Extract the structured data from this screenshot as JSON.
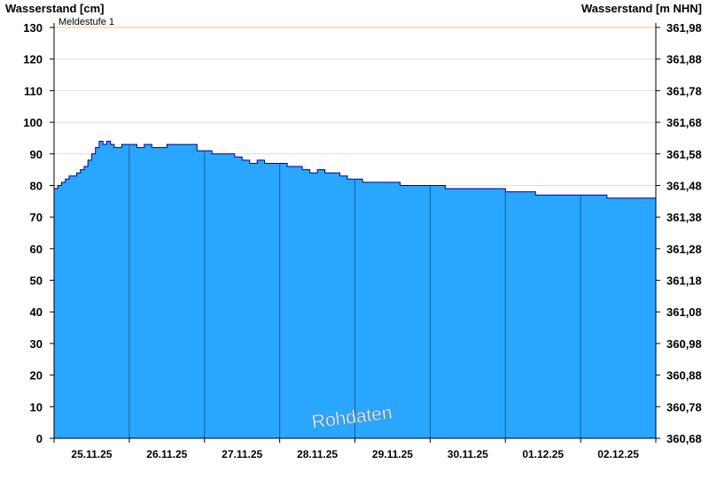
{
  "chart_data": {
    "type": "area",
    "y_left_label": "Wasserstand [cm]",
    "y_right_label": "Wasserstand [m NHN]",
    "ylim": [
      0,
      130
    ],
    "y_ticks": [
      0,
      10,
      20,
      30,
      40,
      50,
      60,
      70,
      80,
      90,
      100,
      110,
      120,
      130
    ],
    "y_right_ticks": [
      "360,68",
      "360,78",
      "360,88",
      "360,98",
      "361,08",
      "361,18",
      "361,28",
      "361,38",
      "361,48",
      "361,58",
      "361,68",
      "361,78",
      "361,88",
      "361,98"
    ],
    "x_range_days": [
      0,
      8
    ],
    "x_tick_labels": [
      "25.11.25",
      "26.11.25",
      "27.11.25",
      "28.11.25",
      "29.11.25",
      "30.11.25",
      "01.12.25",
      "02.12.25"
    ],
    "threshold": {
      "label": "Meldestufe 1",
      "value": 130,
      "color": "#f5c26b"
    },
    "watermark": "Rohdaten",
    "fill_color": "#29a6ff",
    "line_color": "#00008b",
    "grid": true,
    "x": [
      0,
      0.05,
      0.1,
      0.15,
      0.2,
      0.25,
      0.3,
      0.35,
      0.4,
      0.45,
      0.5,
      0.55,
      0.6,
      0.65,
      0.7,
      0.75,
      0.8,
      0.85,
      0.9,
      0.95,
      1.0,
      1.1,
      1.2,
      1.3,
      1.4,
      1.5,
      1.6,
      1.7,
      1.8,
      1.9,
      2.0,
      2.1,
      2.2,
      2.3,
      2.4,
      2.5,
      2.6,
      2.7,
      2.8,
      2.9,
      3.0,
      3.1,
      3.2,
      3.3,
      3.4,
      3.5,
      3.6,
      3.7,
      3.8,
      3.9,
      4.0,
      4.1,
      4.2,
      4.3,
      4.4,
      4.5,
      4.6,
      4.7,
      4.8,
      4.9,
      5.0,
      5.2,
      5.4,
      5.6,
      5.8,
      6.0,
      6.2,
      6.4,
      6.6,
      6.8,
      7.0,
      7.2,
      7.3,
      7.35,
      7.5,
      7.7,
      7.85,
      8.0
    ],
    "values": [
      79,
      80,
      81,
      82,
      83,
      83,
      84,
      85,
      86,
      88,
      90,
      92,
      94,
      93,
      94,
      93,
      92,
      92,
      93,
      93,
      93,
      92,
      93,
      92,
      92,
      93,
      93,
      93,
      93,
      91,
      91,
      90,
      90,
      90,
      89,
      88,
      87,
      88,
      87,
      87,
      87,
      86,
      86,
      85,
      84,
      85,
      84,
      84,
      83,
      82,
      82,
      81,
      81,
      81,
      81,
      81,
      80,
      80,
      80,
      80,
      80,
      79,
      79,
      79,
      79,
      78,
      78,
      77,
      77,
      77,
      77,
      77,
      77,
      76,
      76,
      76,
      76,
      76
    ]
  }
}
